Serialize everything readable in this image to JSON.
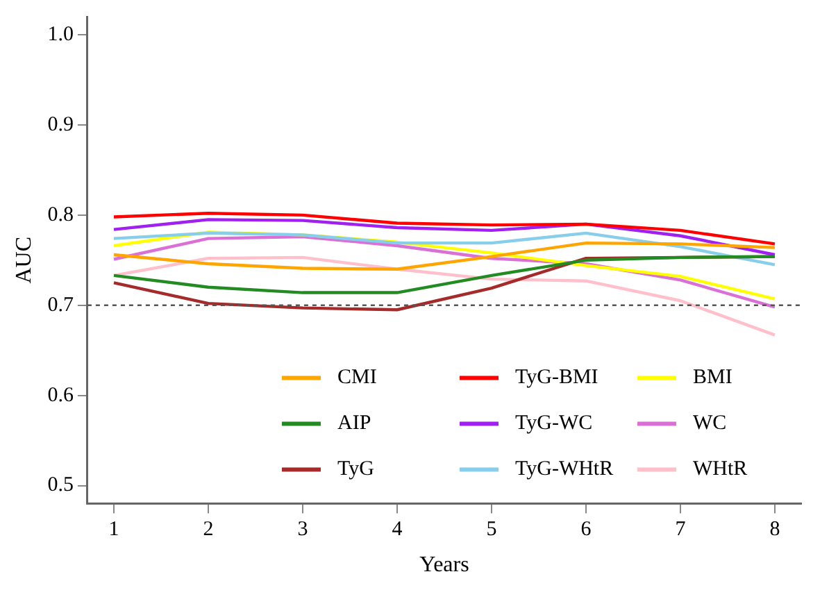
{
  "chart_data": {
    "type": "line",
    "xlabel": "Years",
    "ylabel": "AUC",
    "x": [
      1,
      2,
      3,
      4,
      5,
      6,
      7,
      8
    ],
    "xlim": [
      0.72,
      8.28
    ],
    "xticks": [
      1,
      2,
      3,
      4,
      5,
      6,
      7,
      8
    ],
    "ylim": [
      0.48,
      1.02
    ],
    "yticks": [
      0.5,
      0.6,
      0.7,
      0.8,
      0.9,
      {
        "value": 1,
        "label": "1.0"
      }
    ],
    "grid": false,
    "legend": "bottom right",
    "marker": "none",
    "line_style": "solid",
    "ref_lines": [
      {
        "axis": "y",
        "value": 0.7,
        "color": "#555555",
        "line_style": "dotted"
      }
    ],
    "series": [
      {
        "name": "CMI",
        "color": "#ffa500",
        "values": [
          0.756,
          0.746,
          0.741,
          0.74,
          0.754,
          0.769,
          0.768,
          0.764
        ]
      },
      {
        "name": "AIP",
        "color": "#228b22",
        "values": [
          0.733,
          0.72,
          0.714,
          0.714,
          0.733,
          0.75,
          0.753,
          0.754
        ]
      },
      {
        "name": "TyG",
        "color": "#a52a2a",
        "values": [
          0.725,
          0.702,
          0.697,
          0.695,
          0.719,
          0.752,
          0.753,
          0.754
        ]
      },
      {
        "name": "TyG-BMI",
        "color": "#ff0000",
        "values": [
          0.798,
          0.802,
          0.8,
          0.791,
          0.789,
          0.79,
          0.783,
          0.768
        ]
      },
      {
        "name": "TyG-WC",
        "color": "#a020f0",
        "values": [
          0.784,
          0.795,
          0.794,
          0.786,
          0.783,
          0.79,
          0.777,
          0.756
        ]
      },
      {
        "name": "TyG-WHtR",
        "color": "#87ceeb",
        "values": [
          0.774,
          0.78,
          0.778,
          0.769,
          0.769,
          0.78,
          0.765,
          0.745
        ]
      },
      {
        "name": "BMI",
        "color": "#ffff00",
        "values": [
          0.766,
          0.781,
          0.778,
          0.77,
          0.758,
          0.744,
          0.732,
          0.707
        ]
      },
      {
        "name": "WC",
        "color": "#da70d6",
        "values": [
          0.751,
          0.774,
          0.776,
          0.766,
          0.752,
          0.746,
          0.728,
          0.698
        ]
      },
      {
        "name": "WHtR",
        "color": "#ffc0cb",
        "values": [
          0.733,
          0.752,
          0.753,
          0.74,
          0.729,
          0.727,
          0.705,
          0.667
        ]
      }
    ]
  }
}
